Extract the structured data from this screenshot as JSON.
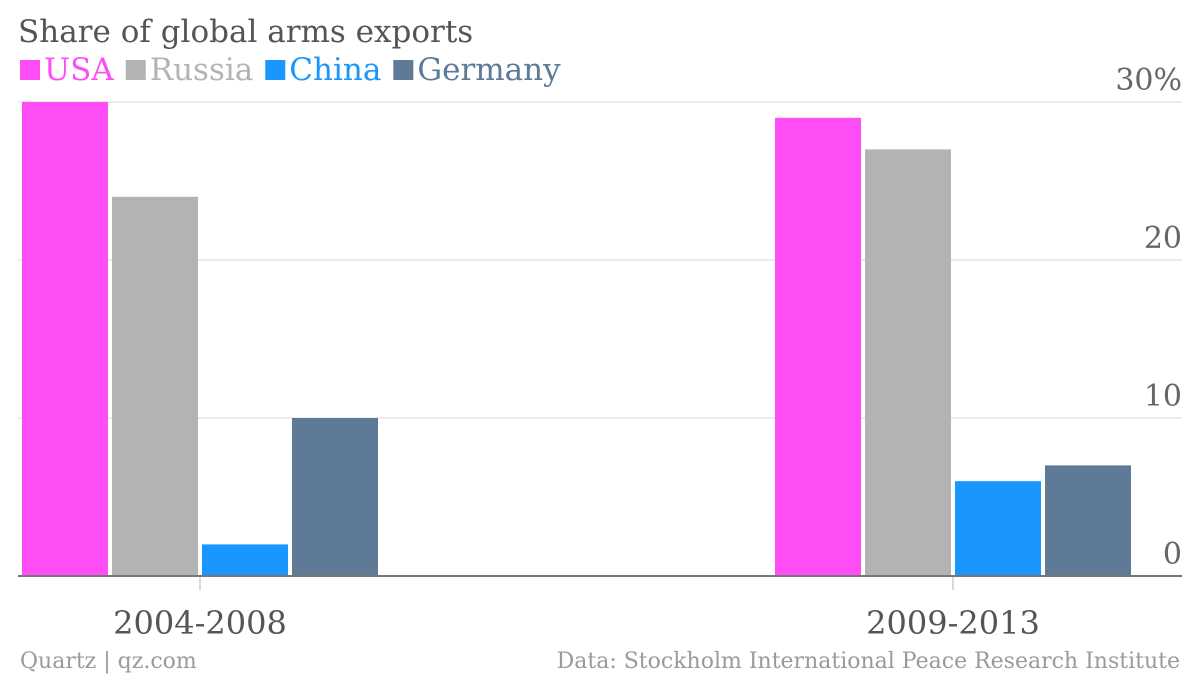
{
  "chart_data": {
    "type": "bar",
    "title": "Share of global arms exports",
    "categories": [
      "2004-2008",
      "2009-2013"
    ],
    "series": [
      {
        "name": "USA",
        "color": "#ff4df5",
        "values": [
          30,
          29
        ]
      },
      {
        "name": "Russia",
        "color": "#b3b3b3",
        "values": [
          24,
          27
        ]
      },
      {
        "name": "China",
        "color": "#1a96ff",
        "values": [
          2,
          6
        ]
      },
      {
        "name": "Germany",
        "color": "#5e7a97",
        "values": [
          10,
          7
        ]
      }
    ],
    "ylim": [
      0,
      30
    ],
    "yticks": [
      "0",
      "10",
      "20",
      "30%"
    ],
    "ytick_values": [
      0,
      10,
      20,
      30
    ],
    "grid": true,
    "legend_position": "top-left",
    "source": "Data: Stockholm International Peace Research Institute",
    "credit": "Quartz | qz.com"
  }
}
